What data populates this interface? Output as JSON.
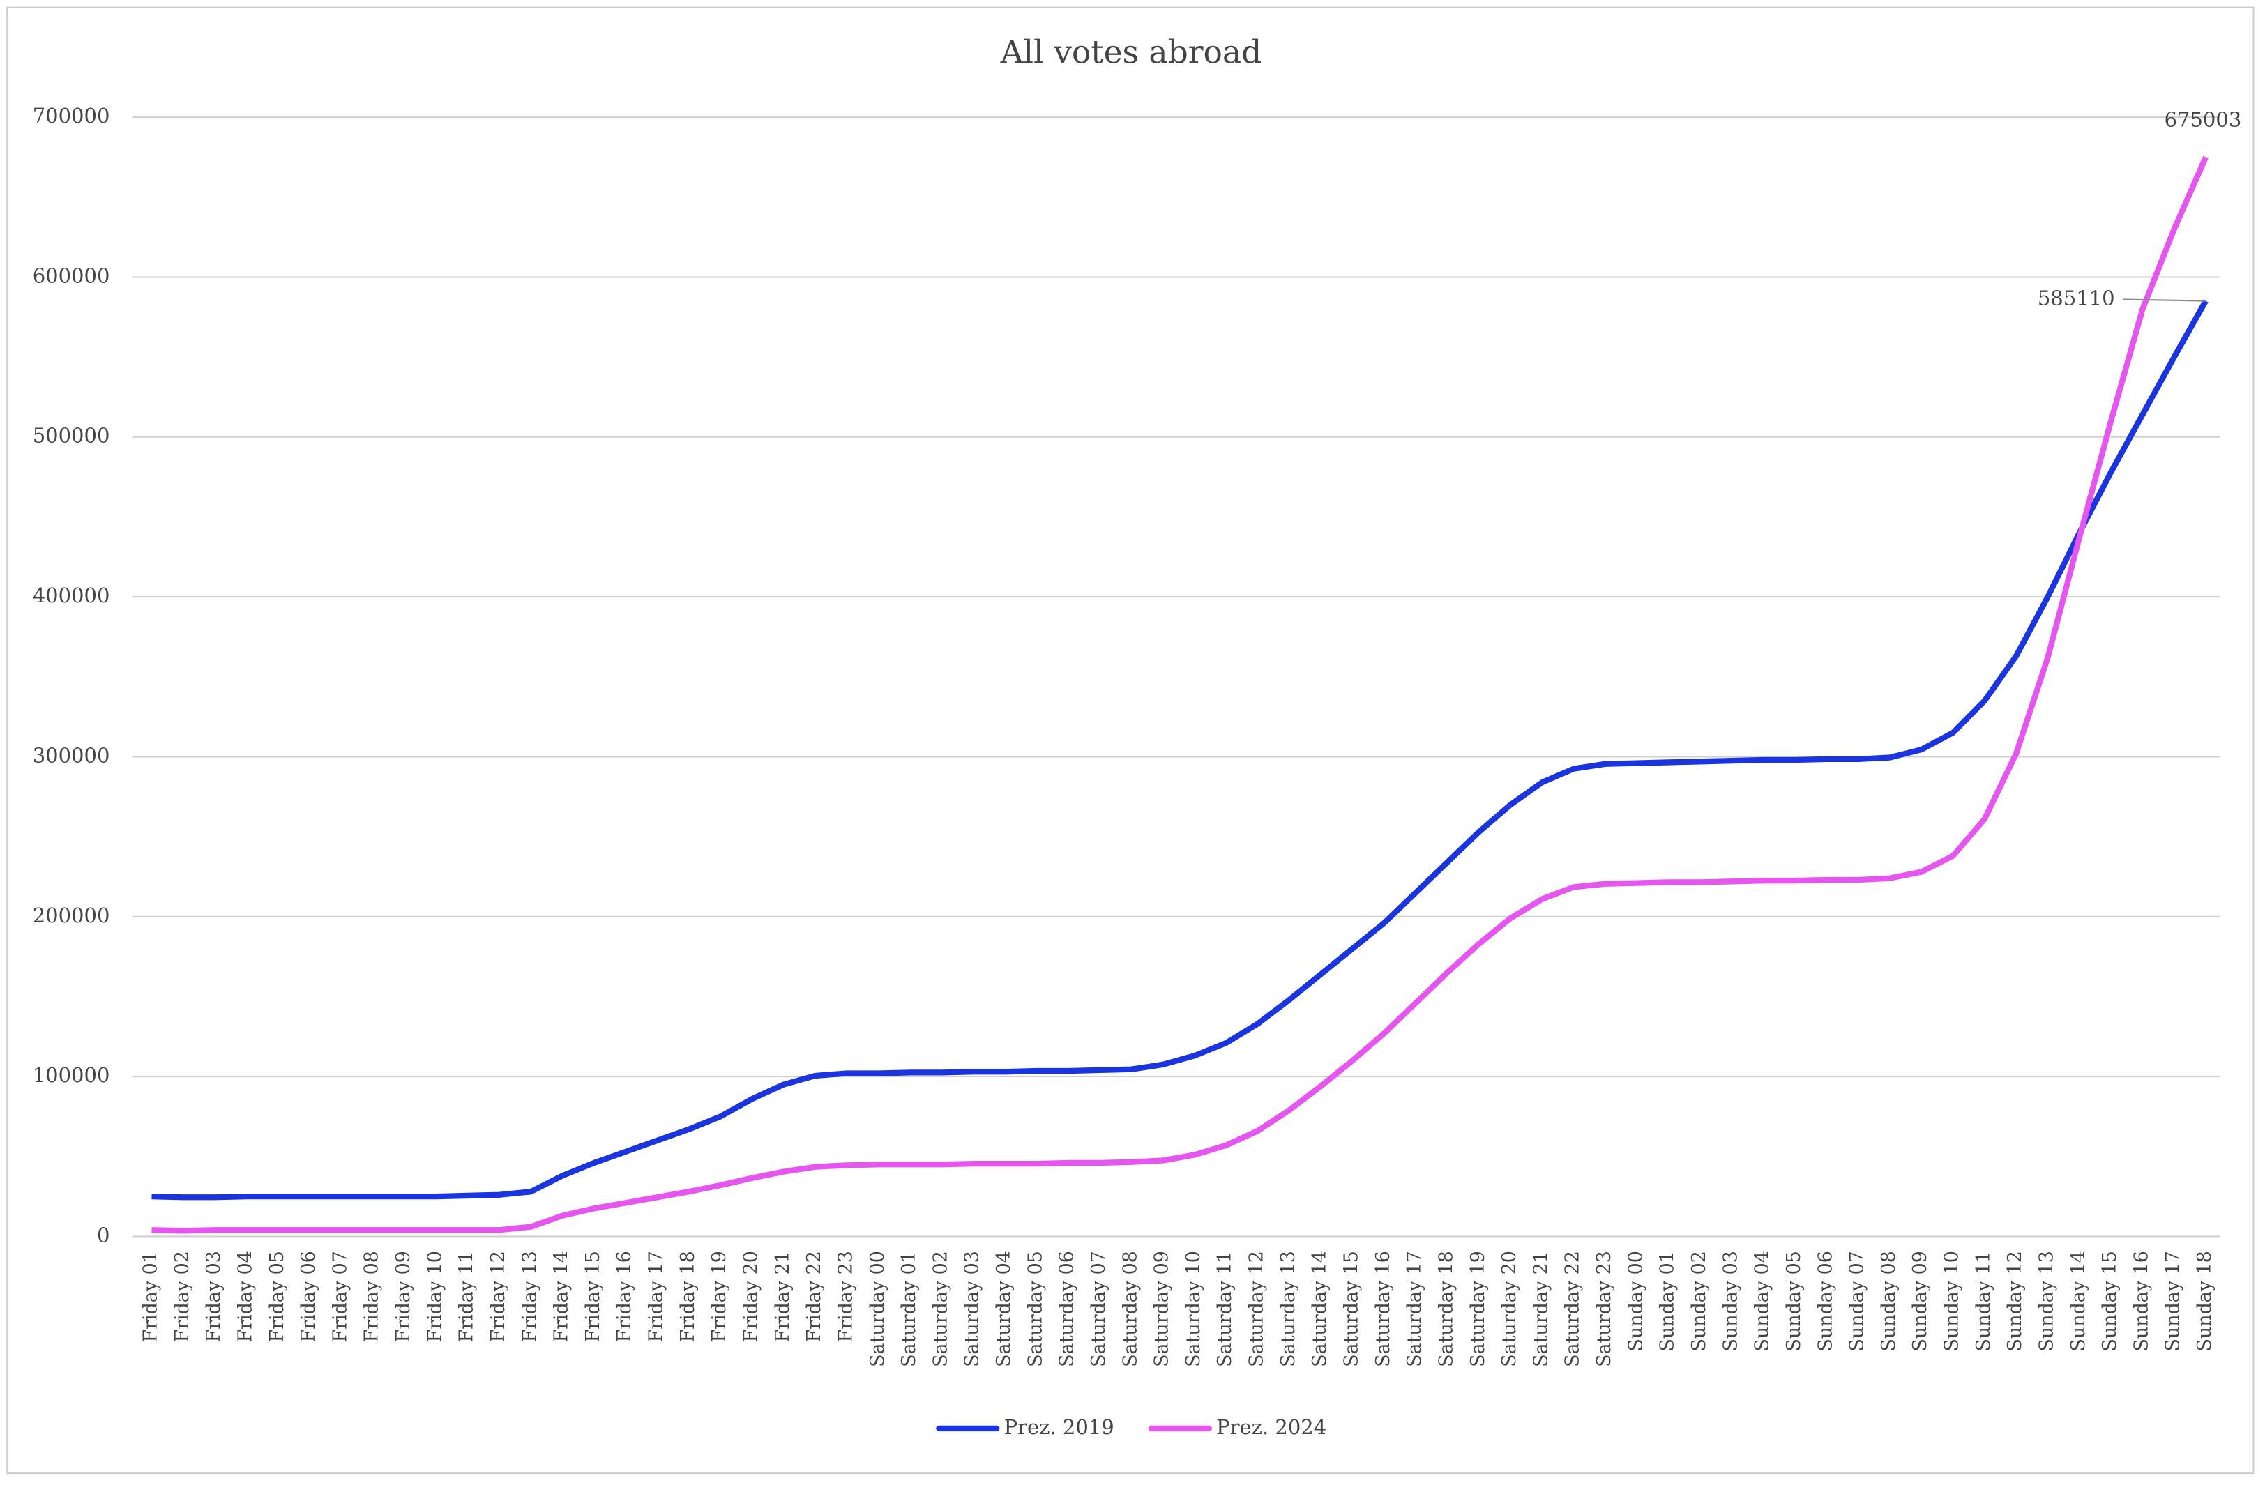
{
  "chart_data": {
    "type": "line",
    "title": "All votes abroad",
    "categories": [
      "Friday 01",
      "Friday 02",
      "Friday 03",
      "Friday 04",
      "Friday 05",
      "Friday 06",
      "Friday 07",
      "Friday 08",
      "Friday 09",
      "Friday 10",
      "Friday 11",
      "Friday 12",
      "Friday 13",
      "Friday 14",
      "Friday 15",
      "Friday 16",
      "Friday 17",
      "Friday 18",
      "Friday 19",
      "Friday 20",
      "Friday 21",
      "Friday 22",
      "Friday 23",
      "Saturday 00",
      "Saturday 01",
      "Saturday 02",
      "Saturday 03",
      "Saturday 04",
      "Saturday 05",
      "Saturday 06",
      "Saturday 07",
      "Saturday 08",
      "Saturday 09",
      "Saturday 10",
      "Saturday 11",
      "Saturday 12",
      "Saturday 13",
      "Saturday 14",
      "Saturday 15",
      "Saturday 16",
      "Saturday 17",
      "Saturday 18",
      "Saturday 19",
      "Saturday 20",
      "Saturday 21",
      "Saturday 22",
      "Saturday 23",
      "Sunday 00",
      "Sunday 01",
      "Sunday 02",
      "Sunday 03",
      "Sunday 04",
      "Sunday 05",
      "Sunday 06",
      "Sunday 07",
      "Sunday 08",
      "Sunday 09",
      "Sunday 10",
      "Sunday 11",
      "Sunday 12",
      "Sunday 13",
      "Sunday 14",
      "Sunday 15",
      "Sunday 16",
      "Sunday 17",
      "Sunday 18"
    ],
    "series": [
      {
        "name": "Prez. 2019",
        "color": "#1a35e0",
        "values": [
          25000,
          24500,
          24500,
          25000,
          25000,
          25000,
          25000,
          25000,
          25000,
          25000,
          25500,
          26000,
          28000,
          38000,
          46000,
          53000,
          60000,
          67000,
          75000,
          86000,
          95000,
          100500,
          102000,
          102000,
          102500,
          102500,
          103000,
          103000,
          103500,
          103500,
          104000,
          104500,
          107500,
          113000,
          121000,
          133000,
          148000,
          164000,
          180000,
          196000,
          215000,
          234000,
          253000,
          270000,
          284000,
          292500,
          295500,
          296000,
          296500,
          297000,
          297500,
          298000,
          298000,
          298500,
          298500,
          299500,
          304500,
          315000,
          335000,
          363000,
          400000,
          440000,
          478000,
          514000,
          550000,
          585110
        ]
      },
      {
        "name": "Prez. 2024",
        "color": "#e655f0",
        "values": [
          4000,
          3500,
          4000,
          4000,
          4000,
          4000,
          4000,
          4000,
          4000,
          4000,
          4000,
          4000,
          6000,
          13000,
          17500,
          21000,
          24500,
          28000,
          32000,
          36500,
          40500,
          43500,
          44500,
          45000,
          45000,
          45000,
          45500,
          45500,
          45500,
          46000,
          46000,
          46500,
          47500,
          51000,
          57000,
          66000,
          79000,
          94000,
          110000,
          127000,
          146000,
          165000,
          183000,
          199000,
          211000,
          218500,
          220500,
          221000,
          221500,
          221500,
          222000,
          222500,
          222500,
          223000,
          223000,
          224000,
          228000,
          238000,
          261000,
          302000,
          362000,
          437000,
          510000,
          580000,
          630000,
          675003
        ]
      }
    ],
    "ylim": [
      0,
      700000
    ],
    "yticks": [
      0,
      100000,
      200000,
      300000,
      400000,
      500000,
      600000,
      700000
    ],
    "grid": true
  }
}
